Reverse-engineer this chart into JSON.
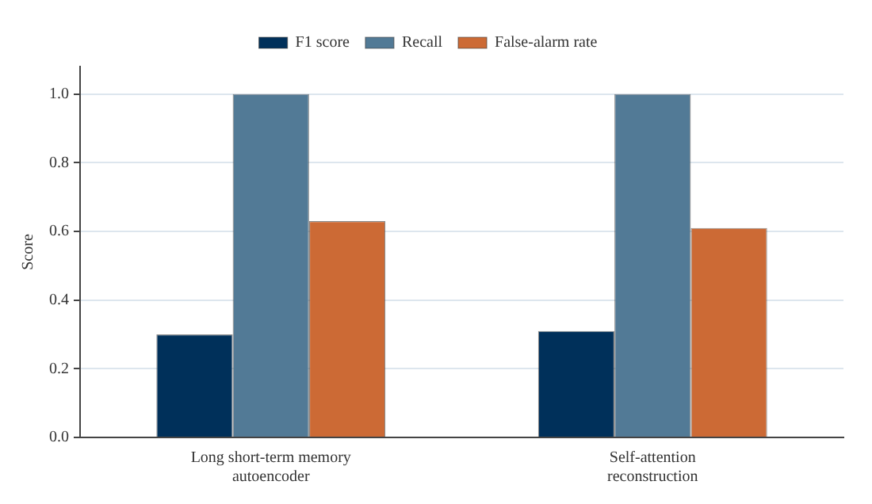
{
  "chart_data": {
    "type": "bar",
    "ylabel": "Score",
    "categories": [
      "Long short-term memory autoencoder",
      "Self-attention reconstruction"
    ],
    "series": [
      {
        "name": "F1 score",
        "color": "#00305a",
        "values": [
          0.3,
          0.31
        ]
      },
      {
        "name": "Recall",
        "color": "#527a96",
        "values": [
          1.0,
          1.0
        ]
      },
      {
        "name": "False-alarm rate",
        "color": "#cc6a35",
        "values": [
          0.63,
          0.61
        ]
      }
    ],
    "ylim": [
      0,
      1.08
    ],
    "yticks": [
      {
        "value": 0,
        "label": "0.0"
      },
      {
        "value": 0.2,
        "label": "0.2"
      },
      {
        "value": 0.4,
        "label": "0.4"
      },
      {
        "value": 0.6,
        "label": "0.6"
      },
      {
        "value": 0.8,
        "label": "0.8"
      },
      {
        "value": 1,
        "label": "1.0"
      }
    ],
    "grid": "y",
    "legend": "top"
  }
}
